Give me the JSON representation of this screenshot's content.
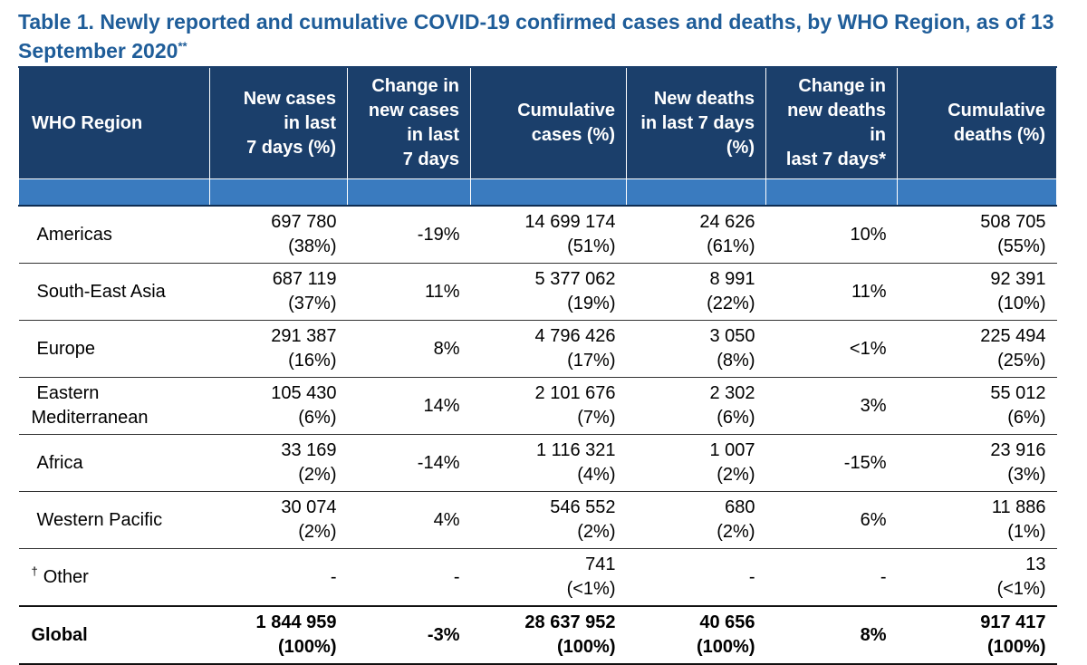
{
  "caption": {
    "text": "Table 1. Newly reported and cumulative COVID-19 confirmed cases and deaths, by WHO Region, as of 13 September 2020",
    "footnote_mark": "**"
  },
  "table": {
    "headers": [
      "WHO Region",
      "New cases\nin  last\n7 days (%)",
      "Change in\nnew cases\nin last\n7 days",
      "Cumulative\ncases (%)",
      "New deaths\nin last 7 days\n(%)",
      "Change in\nnew deaths\nin\nlast 7 days*",
      "Cumulative\ndeaths (%)"
    ],
    "rows": [
      {
        "region": "Americas",
        "mark": "",
        "new_cases": "697 780",
        "new_cases_pct": "(38%)",
        "change_cases": "-19%",
        "cum_cases": "14 699 174",
        "cum_cases_pct": "(51%)",
        "new_deaths": "24 626",
        "new_deaths_pct": "(61%)",
        "change_deaths": "10%",
        "cum_deaths": "508 705",
        "cum_deaths_pct": "(55%)"
      },
      {
        "region": "South-East Asia",
        "mark": "",
        "new_cases": "687 119",
        "new_cases_pct": "(37%)",
        "change_cases": "11%",
        "cum_cases": "5 377 062",
        "cum_cases_pct": "(19%)",
        "new_deaths": "8 991",
        "new_deaths_pct": "(22%)",
        "change_deaths": "11%",
        "cum_deaths": "92 391",
        "cum_deaths_pct": "(10%)"
      },
      {
        "region": "Europe",
        "mark": "",
        "new_cases": "291 387",
        "new_cases_pct": "(16%)",
        "change_cases": "8%",
        "cum_cases": "4 796 426",
        "cum_cases_pct": "(17%)",
        "new_deaths": "3 050",
        "new_deaths_pct": "(8%)",
        "change_deaths": "<1%",
        "cum_deaths": "225 494",
        "cum_deaths_pct": "(25%)"
      },
      {
        "region": "Eastern\nMediterranean",
        "mark": "",
        "new_cases": "105 430",
        "new_cases_pct": "(6%)",
        "change_cases": "14%",
        "cum_cases": "2 101 676",
        "cum_cases_pct": "(7%)",
        "new_deaths": "2 302",
        "new_deaths_pct": "(6%)",
        "change_deaths": "3%",
        "cum_deaths": "55 012",
        "cum_deaths_pct": "(6%)"
      },
      {
        "region": "Africa",
        "mark": "",
        "new_cases": "33 169",
        "new_cases_pct": "(2%)",
        "change_cases": "-14%",
        "cum_cases": "1 116 321",
        "cum_cases_pct": "(4%)",
        "new_deaths": "1 007",
        "new_deaths_pct": "(2%)",
        "change_deaths": "-15%",
        "cum_deaths": "23 916",
        "cum_deaths_pct": "(3%)"
      },
      {
        "region": "Western Pacific",
        "mark": "",
        "new_cases": "30 074",
        "new_cases_pct": "(2%)",
        "change_cases": "4%",
        "cum_cases": "546 552",
        "cum_cases_pct": "(2%)",
        "new_deaths": "680",
        "new_deaths_pct": "(2%)",
        "change_deaths": "6%",
        "cum_deaths": "11 886",
        "cum_deaths_pct": "(1%)"
      },
      {
        "region": "Other",
        "mark": "†",
        "new_cases": "-",
        "new_cases_pct": "",
        "change_cases": "-",
        "cum_cases": "741",
        "cum_cases_pct": "(<1%)",
        "new_deaths": "-",
        "new_deaths_pct": "",
        "change_deaths": "-",
        "cum_deaths": "13",
        "cum_deaths_pct": "(<1%)"
      }
    ],
    "global": {
      "region": "Global",
      "new_cases": "1 844 959",
      "new_cases_pct": "(100%)",
      "change_cases": "-3%",
      "cum_cases": "28 637 952",
      "cum_cases_pct": "(100%)",
      "new_deaths": "40 656",
      "new_deaths_pct": "(100%)",
      "change_deaths": "8%",
      "cum_deaths": "917 417",
      "cum_deaths_pct": "(100%)"
    }
  }
}
